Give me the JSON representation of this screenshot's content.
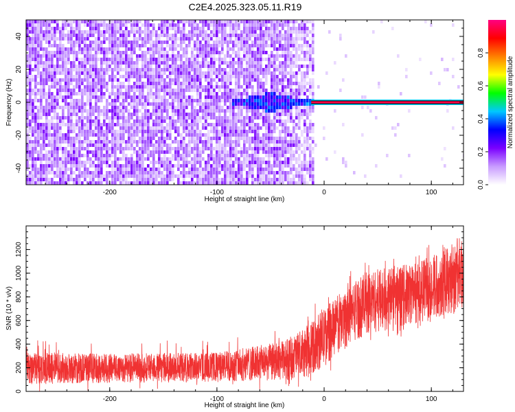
{
  "title": "C2E4.2025.323.05.11.R19",
  "chart_data": [
    {
      "type": "heatmap",
      "title": "C2E4.2025.323.05.11.R19",
      "xlabel": "Height of straight line (km)",
      "ylabel": "Frequency (Hz)",
      "xlim": [
        -278,
        130
      ],
      "ylim": [
        -50,
        50
      ],
      "xticks": [
        -200,
        -100,
        0,
        100
      ],
      "xtick_labels": [
        "-200",
        "-100",
        "0",
        "100"
      ],
      "yticks": [
        -40,
        -20,
        0,
        20,
        40
      ],
      "ytick_labels": [
        "-40",
        "-20",
        "0",
        "20",
        "40"
      ],
      "description_of_field": {
        "noise_region_x": [
          -278,
          -8
        ],
        "noise_amplitude_range": [
          0.05,
          0.25
        ],
        "tone_frequency_hz": 0,
        "tone_start_x": -12,
        "tone_amplitude": 0.95,
        "burst_center_x": -50,
        "burst_halfwidth_hz": 6
      },
      "colorbar": {
        "label": "Normalized spectral amplitude",
        "range": [
          0,
          1
        ],
        "ticks": [
          0,
          0.2,
          0.4,
          0.6,
          0.8
        ],
        "tick_labels": [
          "0.0",
          "0.2",
          "0.4",
          "0.6",
          "0.8"
        ],
        "colors": [
          "#ffffff",
          "#c89bff",
          "#7a00ff",
          "#0000ff",
          "#00c8ff",
          "#00ff00",
          "#ffff00",
          "#ff8000",
          "#ff0000",
          "#ff0080"
        ]
      }
    },
    {
      "type": "line",
      "xlabel": "Height of straight line (km)",
      "ylabel": "SNR (10 * v/v)",
      "xlim": [
        -278,
        130
      ],
      "ylim": [
        0,
        1400
      ],
      "xticks": [
        -200,
        -100,
        0,
        100
      ],
      "xtick_labels": [
        "-200",
        "-100",
        "0",
        "100"
      ],
      "yticks": [
        0,
        200,
        400,
        600,
        800,
        1000,
        1200
      ],
      "ytick_labels": [
        "0",
        "200",
        "400",
        "600",
        "800",
        "1000",
        "1200"
      ],
      "series": [
        {
          "name": "SNR",
          "color": "#f03232",
          "envelope_x": [
            -278,
            -200,
            -100,
            -40,
            -20,
            0,
            20,
            40,
            60,
            80,
            100,
            130
          ],
          "envelope_low": [
            60,
            70,
            80,
            90,
            100,
            200,
            380,
            480,
            520,
            560,
            600,
            700
          ],
          "envelope_high": [
            330,
            320,
            330,
            420,
            520,
            700,
            880,
            1020,
            1050,
            1080,
            1150,
            1330
          ]
        }
      ]
    }
  ]
}
